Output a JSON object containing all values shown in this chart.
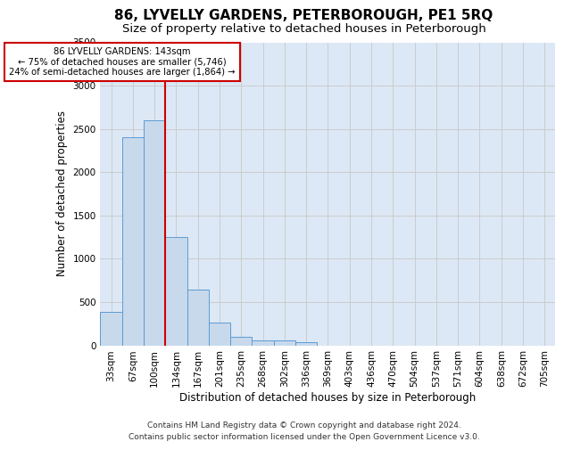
{
  "title": "86, LYVELLY GARDENS, PETERBOROUGH, PE1 5RQ",
  "subtitle": "Size of property relative to detached houses in Peterborough",
  "xlabel": "Distribution of detached houses by size in Peterborough",
  "ylabel": "Number of detached properties",
  "footer_line1": "Contains HM Land Registry data © Crown copyright and database right 2024.",
  "footer_line2": "Contains public sector information licensed under the Open Government Licence v3.0.",
  "bar_labels": [
    "33sqm",
    "67sqm",
    "100sqm",
    "134sqm",
    "167sqm",
    "201sqm",
    "235sqm",
    "268sqm",
    "302sqm",
    "336sqm",
    "369sqm",
    "403sqm",
    "436sqm",
    "470sqm",
    "504sqm",
    "537sqm",
    "571sqm",
    "604sqm",
    "638sqm",
    "672sqm",
    "705sqm"
  ],
  "bar_values": [
    390,
    2400,
    2600,
    1250,
    640,
    260,
    100,
    60,
    55,
    40,
    0,
    0,
    0,
    0,
    0,
    0,
    0,
    0,
    0,
    0,
    0
  ],
  "bar_color": "#c8d9ec",
  "bar_edge_color": "#5b9bd5",
  "vline_color": "#cc0000",
  "vline_x_index": 3,
  "annotation_line1": "86 LYVELLY GARDENS: 143sqm",
  "annotation_line2": "← 75% of detached houses are smaller (5,746)",
  "annotation_line3": "24% of semi-detached houses are larger (1,864) →",
  "annotation_box_color": "#cc0000",
  "annotation_text_color": "#000000",
  "ylim": [
    0,
    3500
  ],
  "yticks": [
    0,
    500,
    1000,
    1500,
    2000,
    2500,
    3000,
    3500
  ],
  "grid_color": "#cccccc",
  "background_color": "#dce8f5",
  "title_fontsize": 11,
  "subtitle_fontsize": 9.5,
  "axis_label_fontsize": 8.5,
  "tick_fontsize": 7.5,
  "footer_fontsize": 6.5
}
